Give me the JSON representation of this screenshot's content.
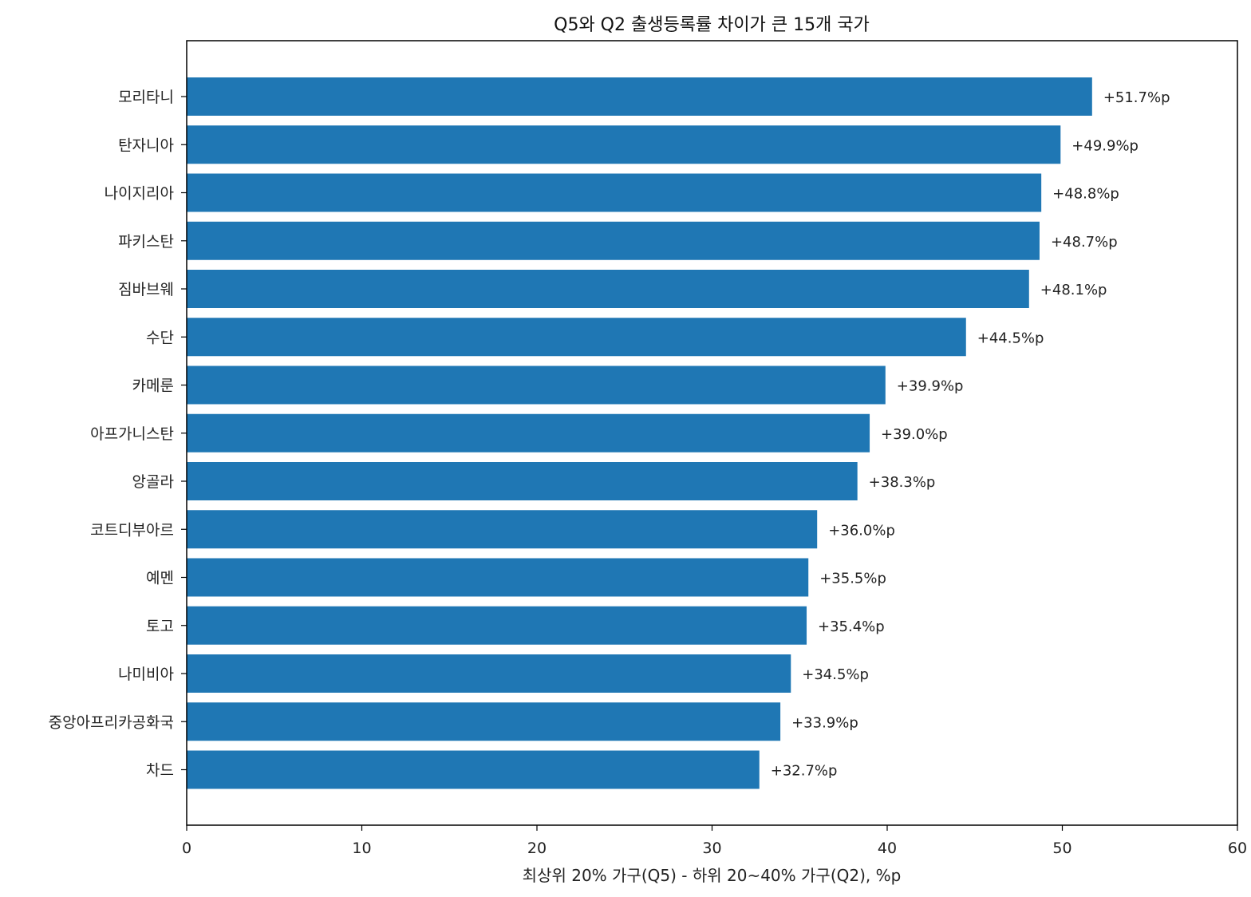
{
  "chart_data": {
    "type": "bar",
    "orientation": "horizontal",
    "title": "Q5와 Q2 출생등록률 차이가 큰 15개 국가",
    "xlabel": "최상위 20% 가구(Q5) - 하위 20~40% 가구(Q2), %p",
    "ylabel": "",
    "xlim": [
      0,
      60
    ],
    "xticks": [
      0,
      10,
      20,
      30,
      40,
      50,
      60
    ],
    "grid": false,
    "bar_color": "#1f77b4",
    "categories": [
      "모리타니",
      "탄자니아",
      "나이지리아",
      "파키스탄",
      "짐바브웨",
      "수단",
      "카메룬",
      "아프가니스탄",
      "앙골라",
      "코트디부아르",
      "예멘",
      "토고",
      "나미비아",
      "중앙아프리카공화국",
      "차드"
    ],
    "values": [
      51.7,
      49.9,
      48.8,
      48.7,
      48.1,
      44.5,
      39.9,
      39.0,
      38.3,
      36.0,
      35.5,
      35.4,
      34.5,
      33.9,
      32.7
    ],
    "data_labels": [
      "+51.7%p",
      "+49.9%p",
      "+48.8%p",
      "+48.7%p",
      "+48.1%p",
      "+44.5%p",
      "+39.9%p",
      "+39.0%p",
      "+38.3%p",
      "+36.0%p",
      "+35.5%p",
      "+35.4%p",
      "+34.5%p",
      "+33.9%p",
      "+32.7%p"
    ]
  }
}
